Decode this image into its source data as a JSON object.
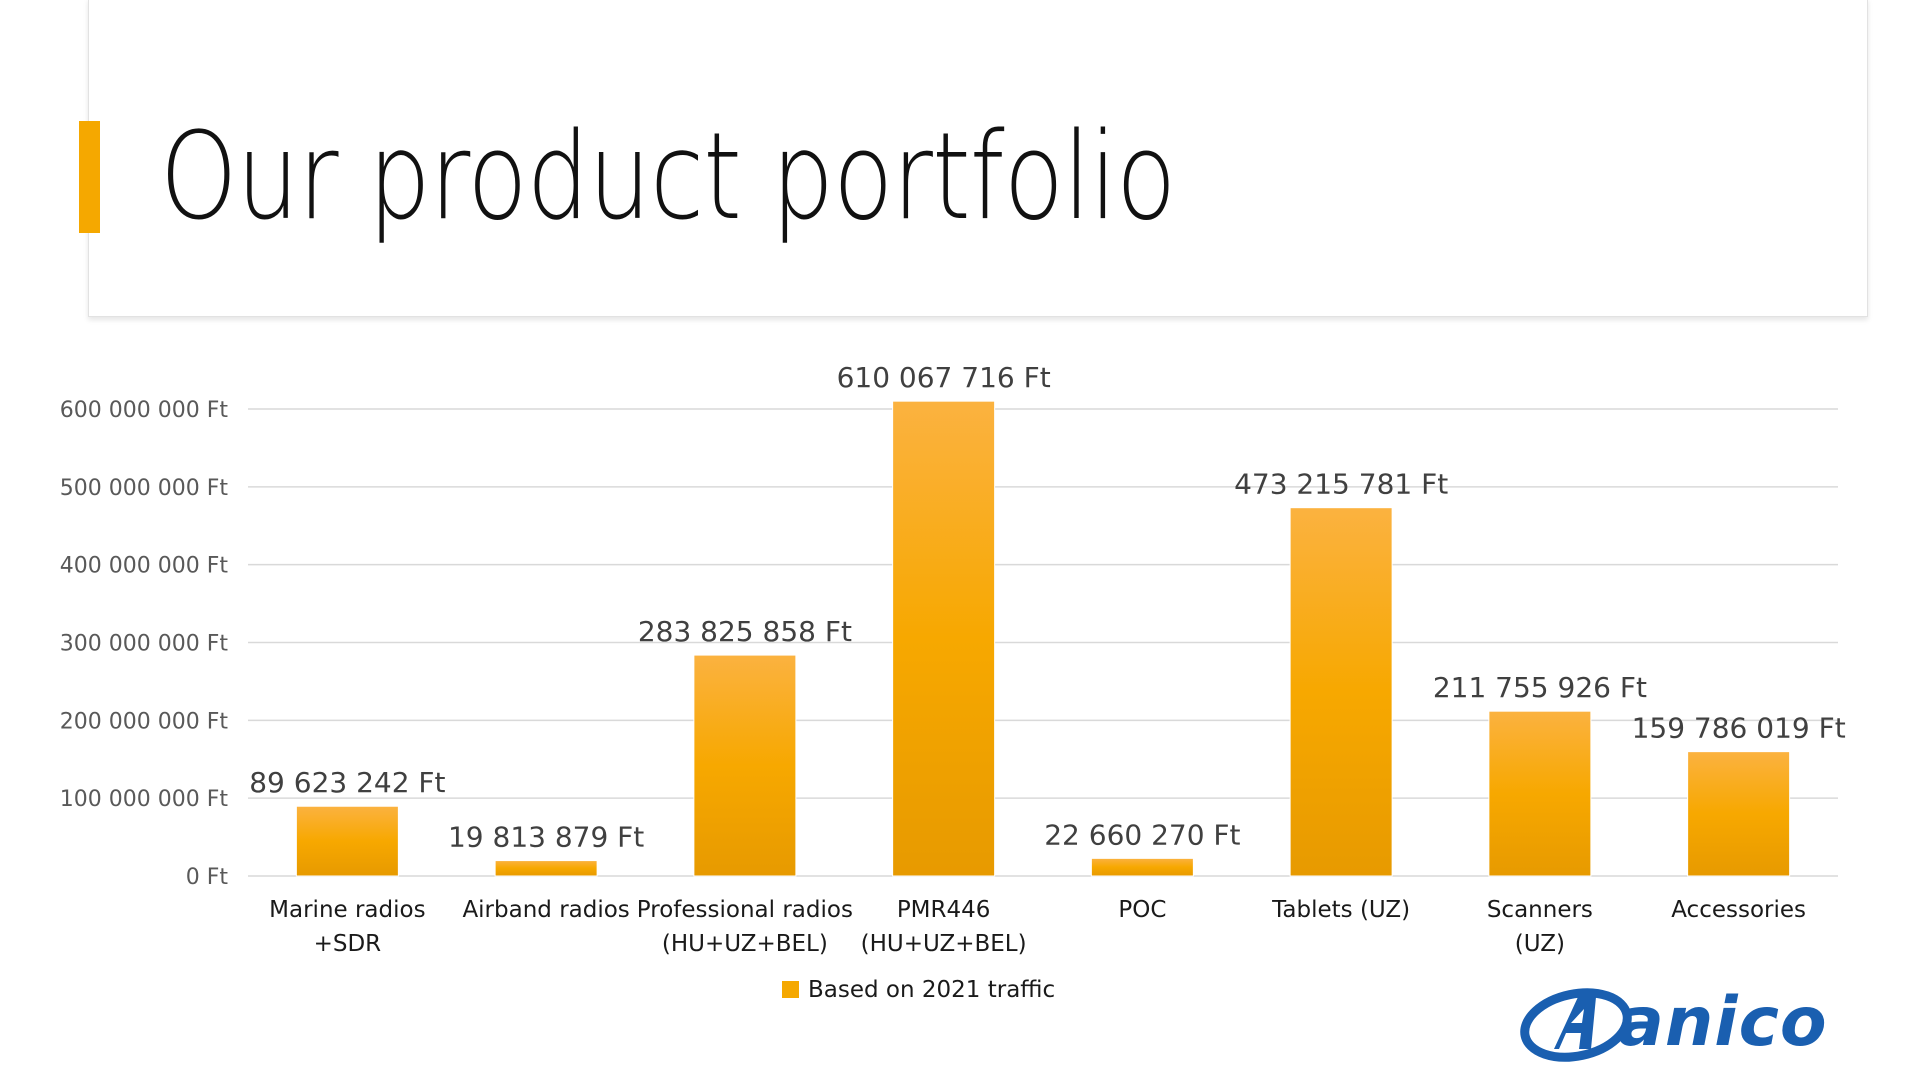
{
  "title": "Our product portfolio",
  "colors": {
    "accent": "#f5a800",
    "bar_top": "#fbb240",
    "bar_mid": "#f7a800",
    "bar_bottom": "#e79a00",
    "grid": "#d9d9d9",
    "logo": "#1a5fb0"
  },
  "logo": {
    "text": "anico",
    "icon": "circled-a-logo-icon"
  },
  "chart_data": {
    "type": "bar",
    "title": "",
    "xlabel": "",
    "ylabel": "",
    "ylim": [
      0,
      600000000
    ],
    "yticks": [
      0,
      100000000,
      200000000,
      300000000,
      400000000,
      500000000,
      600000000
    ],
    "ytick_labels": [
      "0 Ft",
      "100 000 000 Ft",
      "200 000 000 Ft",
      "300 000 000 Ft",
      "400 000 000 Ft",
      "500 000 000 Ft",
      "600 000 000 Ft"
    ],
    "grid": true,
    "legend": "bottom-center",
    "categories": [
      [
        "Marine radios",
        "+SDR"
      ],
      [
        "Airband radios"
      ],
      [
        "Professional radios",
        "(HU+UZ+BEL)"
      ],
      [
        "PMR446",
        "(HU+UZ+BEL)"
      ],
      [
        "POC"
      ],
      [
        "Tablets (UZ)"
      ],
      [
        "Scanners",
        "(UZ)"
      ],
      [
        "Accessories"
      ]
    ],
    "series": [
      {
        "name": "Based on 2021 traffic",
        "values": [
          89623242,
          19813879,
          283825858,
          610067716,
          22660270,
          473215781,
          211755926,
          159786019
        ],
        "labels": [
          "89 623 242 Ft",
          "19 813 879 Ft",
          "283 825 858 Ft",
          "610 067 716 Ft",
          "22 660 270 Ft",
          "473 215 781 Ft",
          "211 755 926 Ft",
          "159 786 019 Ft"
        ]
      }
    ]
  }
}
